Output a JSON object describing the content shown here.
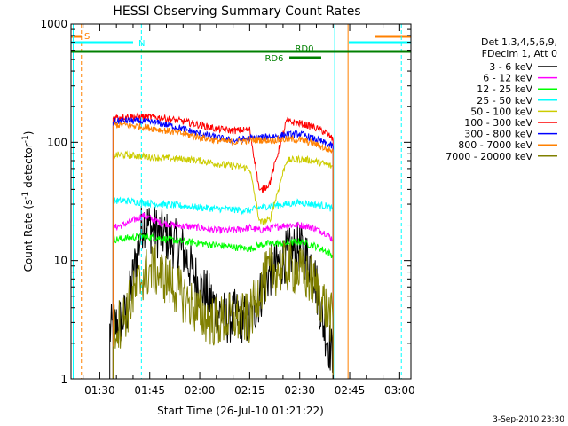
{
  "chart_data": {
    "type": "line",
    "title": "HESSI Observing Summary Count Rates",
    "xlabel": "Start Time (26-Jul-10 01:21:22)",
    "ylabel_main": "Count Rate (s",
    "ylabel_sup1": "-1",
    "ylabel_mid": " detector",
    "ylabel_sup2": "-1",
    "ylabel_end": ")",
    "x_ticks": [
      "01:30",
      "01:45",
      "02:00",
      "02:15",
      "02:30",
      "02:45",
      "03:00"
    ],
    "x_tick_minutes": [
      90,
      105,
      120,
      135,
      150,
      165,
      180
    ],
    "xlim_minutes": [
      81.37,
      183.37
    ],
    "y_scale": "log",
    "ylim": [
      1,
      1000
    ],
    "y_ticks": [
      "1",
      "10",
      "100",
      "1000"
    ],
    "y_tick_values": [
      1,
      10,
      100,
      1000
    ],
    "legend_placement": "right",
    "legend_header": [
      "Det 1,3,4,5,6,9,",
      "FDecim 1, Att 0"
    ],
    "series": [
      {
        "name": "3 - 6 keV",
        "color": "#000000",
        "x": [
          93,
          98,
          103,
          106,
          110,
          115,
          120,
          125,
          128,
          131,
          135,
          138,
          141,
          146,
          150,
          154,
          157,
          160
        ],
        "y": [
          2.5,
          3.5,
          22,
          18,
          16,
          12,
          6,
          4,
          3.2,
          3.5,
          3.0,
          5,
          8,
          11,
          13,
          9,
          3,
          1.5
        ]
      },
      {
        "name": "6 - 12 keV",
        "color": "#ff00ff",
        "x": [
          94,
          97,
          103,
          108,
          112,
          120,
          125,
          130,
          135,
          138,
          142,
          146,
          150,
          154,
          158,
          160
        ],
        "y": [
          19,
          20,
          24,
          21,
          20,
          19,
          18,
          18,
          19,
          18,
          19,
          20,
          20,
          19,
          17,
          15
        ]
      },
      {
        "name": "12 - 25 keV",
        "color": "#00ff00",
        "x": [
          94,
          98,
          103,
          108,
          115,
          120,
          125,
          130,
          135,
          138,
          141,
          146,
          150,
          154,
          158,
          160
        ],
        "y": [
          15,
          15.5,
          16,
          15.5,
          14.5,
          14,
          13.5,
          13,
          12.5,
          13.5,
          14,
          14,
          14.5,
          13.5,
          12,
          11
        ]
      },
      {
        "name": "25 - 50 keV",
        "color": "#00ffff",
        "x": [
          94,
          98,
          103,
          108,
          115,
          120,
          125,
          130,
          135,
          138,
          141,
          146,
          150,
          154,
          158,
          160
        ],
        "y": [
          32,
          32,
          31,
          30,
          29,
          28,
          27.5,
          27,
          26.5,
          28,
          29,
          30,
          31,
          30,
          29,
          27
        ]
      },
      {
        "name": "50 - 100 keV",
        "color": "#cccc00",
        "x": [
          94,
          98,
          103,
          108,
          115,
          120,
          125,
          130,
          135,
          138,
          141,
          146,
          150,
          154,
          158,
          160
        ],
        "y": [
          78,
          78,
          76,
          74,
          72,
          70,
          66,
          63,
          60,
          21,
          22,
          70,
          72,
          70,
          65,
          62
        ]
      },
      {
        "name": "100 - 300 keV",
        "color": "#ff0000",
        "x": [
          94,
          98,
          103,
          108,
          115,
          120,
          125,
          130,
          135,
          138,
          141,
          146,
          150,
          154,
          158,
          160
        ],
        "y": [
          162,
          165,
          164,
          162,
          150,
          140,
          130,
          125,
          128,
          38,
          45,
          150,
          145,
          135,
          120,
          105
        ]
      },
      {
        "name": "300 - 800 keV",
        "color": "#0000ff",
        "x": [
          94,
          98,
          103,
          108,
          115,
          120,
          125,
          130,
          135,
          138,
          141,
          146,
          150,
          154,
          158,
          160
        ],
        "y": [
          150,
          152,
          150,
          145,
          130,
          118,
          110,
          103,
          108,
          110,
          112,
          115,
          118,
          108,
          97,
          92
        ]
      },
      {
        "name": "800 - 7000 keV",
        "color": "#ff8000",
        "x": [
          94,
          98,
          103,
          108,
          115,
          120,
          125,
          130,
          135,
          138,
          141,
          146,
          150,
          154,
          158,
          160
        ],
        "y": [
          140,
          140,
          135,
          128,
          118,
          110,
          104,
          100,
          104,
          105,
          104,
          106,
          105,
          98,
          88,
          84
        ]
      },
      {
        "name": "7000 - 20000 keV",
        "color": "#808000",
        "x": [
          94,
          97,
          100,
          103,
          106,
          110,
          115,
          120,
          125,
          130,
          135,
          138,
          141,
          146,
          150,
          154,
          158,
          160
        ],
        "y": [
          2.6,
          3.2,
          5,
          7.5,
          8.5,
          7,
          5,
          3.5,
          3.0,
          3.3,
          3.2,
          6,
          8,
          9,
          8,
          6.5,
          4,
          3
        ]
      }
    ],
    "annotations": [
      {
        "label": "S",
        "color": "#ff8000"
      },
      {
        "label": "N",
        "color": "#00ffff"
      },
      {
        "label": "RD0",
        "color": "#008000"
      },
      {
        "label": "RD6",
        "color": "#008000"
      }
    ],
    "footer": "3-Sep-2010 23:30"
  }
}
